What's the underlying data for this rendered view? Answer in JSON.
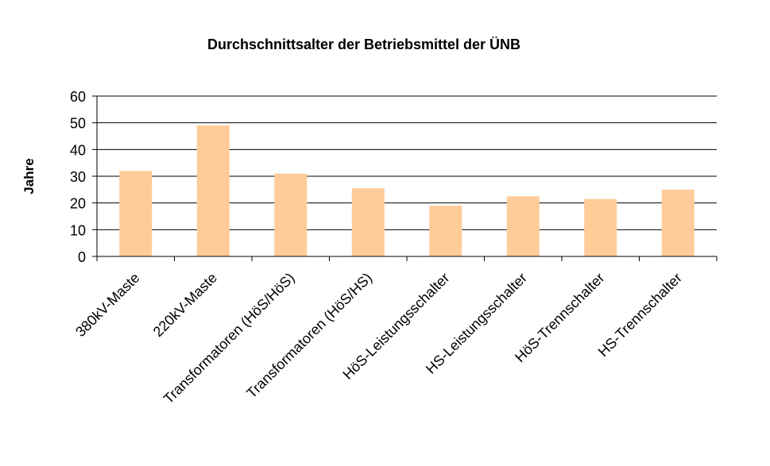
{
  "chart_data": {
    "type": "bar",
    "title": "Durchschnittsalter der Betriebsmittel der ÜNB",
    "xlabel": "",
    "ylabel": "Jahre",
    "ylim": [
      0,
      60
    ],
    "yticks": [
      0,
      10,
      20,
      30,
      40,
      50,
      60
    ],
    "grid": true,
    "legend": "none",
    "bar_color": "#FFCC99",
    "categories": [
      "380kV-Maste",
      "220kV-Maste",
      "Transformatoren (HöS/HöS)",
      "Transformatoren (HöS/HS)",
      "HöS-Leistungsschalter",
      "HS-Leistungsschalter",
      "HöS-Trennschalter",
      "HS-Trennschalter"
    ],
    "values": [
      32,
      49,
      31,
      25.5,
      19,
      22.5,
      21.5,
      25
    ]
  }
}
